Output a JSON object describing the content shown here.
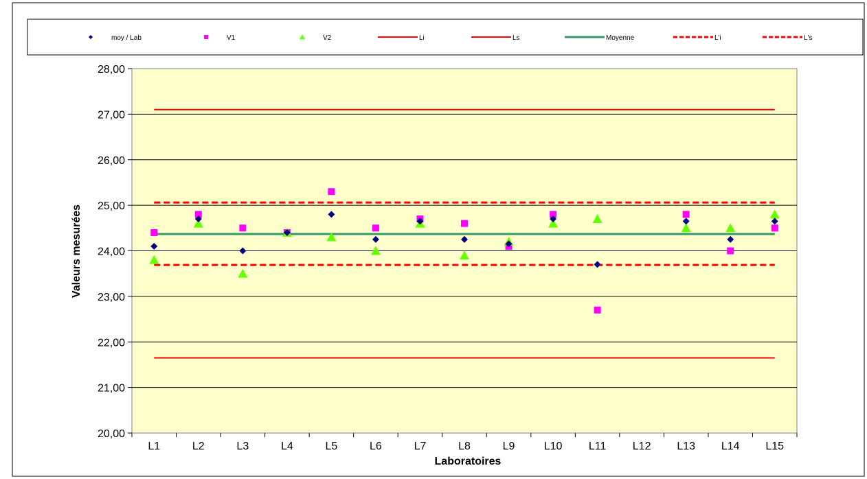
{
  "chart_data": {
    "type": "scatter",
    "title": "",
    "xlabel": "Laboratoires",
    "ylabel": "Valeurs mesurées",
    "ylim": [
      20,
      28
    ],
    "ystep": 1,
    "grid": true,
    "legend_position": "top",
    "plot_background": "#FFFFCC",
    "categories": [
      "L1",
      "L2",
      "L3",
      "L4",
      "L5",
      "L6",
      "L7",
      "L8",
      "L9",
      "L10",
      "L11",
      "L12",
      "L13",
      "L14",
      "L15"
    ],
    "ytick_labels": [
      "20,00",
      "21,00",
      "22,00",
      "23,00",
      "24,00",
      "25,00",
      "26,00",
      "27,00",
      "28,00"
    ],
    "series": [
      {
        "name": "moy / Lab",
        "marker": "diamond",
        "color": "#000080",
        "values": [
          24.1,
          24.7,
          24.0,
          24.4,
          24.8,
          24.25,
          24.65,
          24.25,
          24.15,
          24.7,
          23.7,
          null,
          24.65,
          24.25,
          24.65
        ]
      },
      {
        "name": "V1",
        "marker": "square",
        "color": "#FF00FF",
        "values": [
          24.4,
          24.8,
          24.5,
          24.4,
          25.3,
          24.5,
          24.7,
          24.6,
          24.1,
          24.8,
          22.7,
          null,
          24.8,
          24.0,
          24.5
        ]
      },
      {
        "name": "V2",
        "marker": "triangle",
        "color": "#66FF00",
        "values": [
          23.8,
          24.6,
          23.5,
          24.4,
          24.3,
          24.0,
          24.6,
          23.9,
          24.2,
          24.6,
          24.7,
          null,
          24.5,
          24.5,
          24.8
        ]
      }
    ],
    "lines": [
      {
        "name": "Li",
        "value": 21.65,
        "color": "#FF0000",
        "style": "solid"
      },
      {
        "name": "Ls",
        "value": 27.1,
        "color": "#FF0000",
        "style": "solid"
      },
      {
        "name": "Moyenne",
        "value": 24.37,
        "color": "#339966",
        "style": "thick"
      },
      {
        "name": "L'i",
        "value": 23.69,
        "color": "#FF0000",
        "style": "dashed"
      },
      {
        "name": "L's",
        "value": 25.06,
        "color": "#FF0000",
        "style": "dashed"
      }
    ]
  }
}
